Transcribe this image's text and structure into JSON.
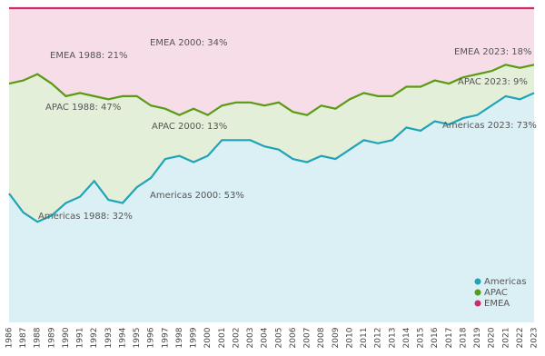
{
  "chart_data": {
    "type": "stacked-area",
    "categories": [
      "1986",
      "1987",
      "1988",
      "1989",
      "1990",
      "1991",
      "1992",
      "1993",
      "1994",
      "1995",
      "1996",
      "1997",
      "1998",
      "1999",
      "2000",
      "2001",
      "2002",
      "2003",
      "2004",
      "2005",
      "2006",
      "2007",
      "2008",
      "2009",
      "2010",
      "2011",
      "2012",
      "2013",
      "2014",
      "2015",
      "2016",
      "2017",
      "2018",
      "2019",
      "2020",
      "2021",
      "2022",
      "2023"
    ],
    "series": [
      {
        "name": "Americas",
        "color": "#1fa3b8",
        "values": [
          41,
          35,
          32,
          34,
          38,
          40,
          45,
          39,
          38,
          43,
          46,
          52,
          53,
          51,
          53,
          58,
          58,
          58,
          56,
          55,
          52,
          51,
          53,
          52,
          55,
          58,
          57,
          58,
          62,
          61,
          64,
          63,
          65,
          66,
          69,
          72,
          71,
          73
        ]
      },
      {
        "name": "APAC",
        "color": "#5a9a14",
        "values": [
          35,
          42,
          47,
          42,
          34,
          33,
          27,
          32,
          34,
          29,
          23,
          16,
          13,
          17,
          13,
          11,
          12,
          12,
          13,
          15,
          15,
          15,
          16,
          16,
          16,
          15,
          15,
          14,
          13,
          14,
          13,
          13,
          13,
          13,
          11,
          10,
          10,
          9
        ]
      },
      {
        "name": "EMEA",
        "color": "#cc2a6c",
        "values": [
          24,
          23,
          21,
          24,
          28,
          27,
          28,
          29,
          28,
          28,
          31,
          32,
          34,
          32,
          34,
          31,
          30,
          30,
          31,
          30,
          33,
          34,
          31,
          32,
          29,
          27,
          28,
          28,
          25,
          25,
          23,
          24,
          22,
          21,
          20,
          18,
          19,
          18
        ]
      }
    ],
    "ylim": [
      0,
      100
    ],
    "annotations": [
      "EMEA 1988: 21%",
      "EMEA 2000: 34%",
      "EMEA 2023: 18%",
      "APAC 1988: 47%",
      "APAC 2000: 13%",
      "APAC 2023: 9%",
      "Americas 1988: 32%",
      "Americas 2000: 53%",
      "Americas 2023: 73%"
    ],
    "legend": "lower right"
  }
}
